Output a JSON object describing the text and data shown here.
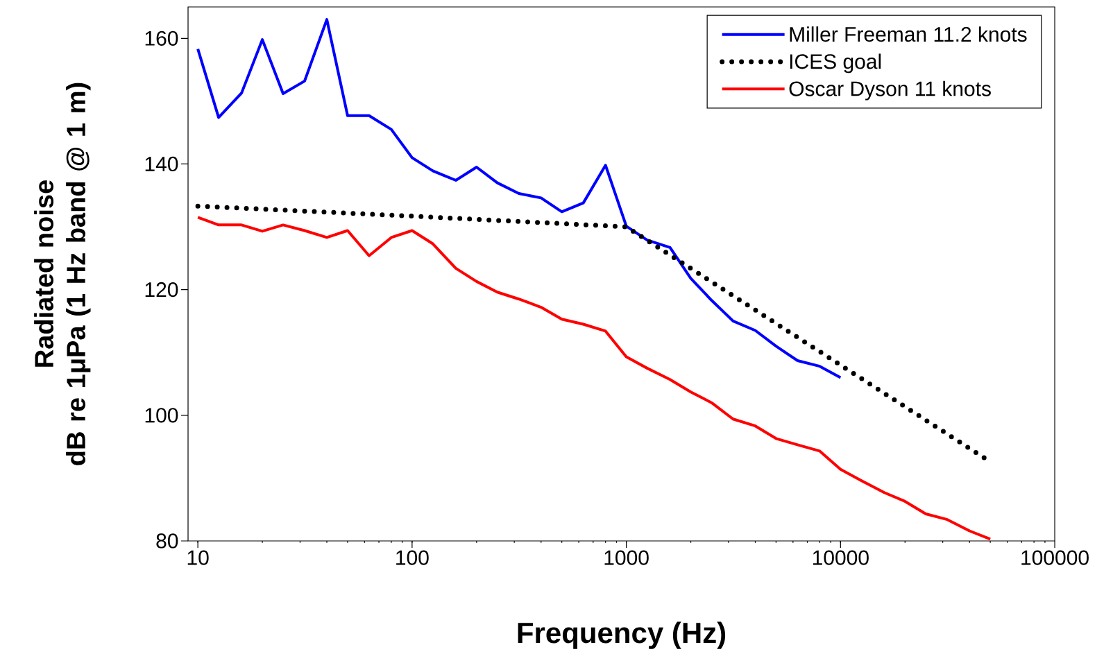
{
  "chart_data": {
    "type": "line",
    "xlabel": "Frequency (Hz)",
    "ylabel": "Radiated noise\ndB re 1μPa (1 Hz band @ 1 m)",
    "log": "x",
    "xlim": [
      9,
      100000
    ],
    "ylim": [
      80,
      165
    ],
    "xticks": [
      10,
      100,
      1000,
      10000,
      100000
    ],
    "yticks": [
      80,
      100,
      120,
      140,
      160
    ],
    "grid": false,
    "legend": "top right",
    "series": [
      {
        "name": "Miller Freeman 11.2 knots",
        "color": "#0000ff",
        "line_style": "solid",
        "x": [
          10,
          12.5,
          16,
          20,
          25,
          31.5,
          40,
          50,
          63,
          80,
          100,
          125,
          160,
          200,
          250,
          315,
          400,
          500,
          630,
          800,
          1000,
          1250,
          1600,
          2000,
          2500,
          3150,
          4000,
          5000,
          6300,
          8000,
          10000
        ],
        "values": [
          158.3,
          147.4,
          151.3,
          159.8,
          151.2,
          153.2,
          163,
          147.7,
          147.7,
          145.5,
          141,
          138.9,
          137.4,
          139.5,
          137,
          135.3,
          134.6,
          132.4,
          133.8,
          139.8,
          130.1,
          127.9,
          126.7,
          121.8,
          118.3,
          115,
          113.5,
          111,
          108.7,
          107.8,
          106
        ]
      },
      {
        "name": "ICES goal",
        "color": "#000000",
        "line_style": "dotted",
        "x": [
          10,
          100,
          1000,
          10000,
          50000
        ],
        "values": [
          133.3,
          131.7,
          130,
          108,
          92.6
        ]
      },
      {
        "name": "Oscar Dyson 11 knots",
        "color": "#ff0000",
        "line_style": "solid",
        "x": [
          10,
          12.5,
          16,
          20,
          25,
          31.5,
          40,
          50,
          63,
          80,
          100,
          125,
          160,
          200,
          250,
          315,
          400,
          500,
          630,
          800,
          1000,
          1250,
          1600,
          2000,
          2500,
          3150,
          4000,
          5000,
          6300,
          8000,
          10000,
          12500,
          16000,
          20000,
          25000,
          31500,
          40000,
          50000
        ],
        "values": [
          131.5,
          130.3,
          130.3,
          129.3,
          130.3,
          129.4,
          128.3,
          129.4,
          125.4,
          128.3,
          129.4,
          127.3,
          123.4,
          121.3,
          119.6,
          118.5,
          117.2,
          115.3,
          114.5,
          113.4,
          109.3,
          107.5,
          105.7,
          103.7,
          102,
          99.4,
          98.3,
          96.3,
          95.3,
          94.3,
          91.4,
          89.6,
          87.7,
          86.3,
          84.3,
          83.4,
          81.6,
          80.3
        ]
      }
    ]
  }
}
